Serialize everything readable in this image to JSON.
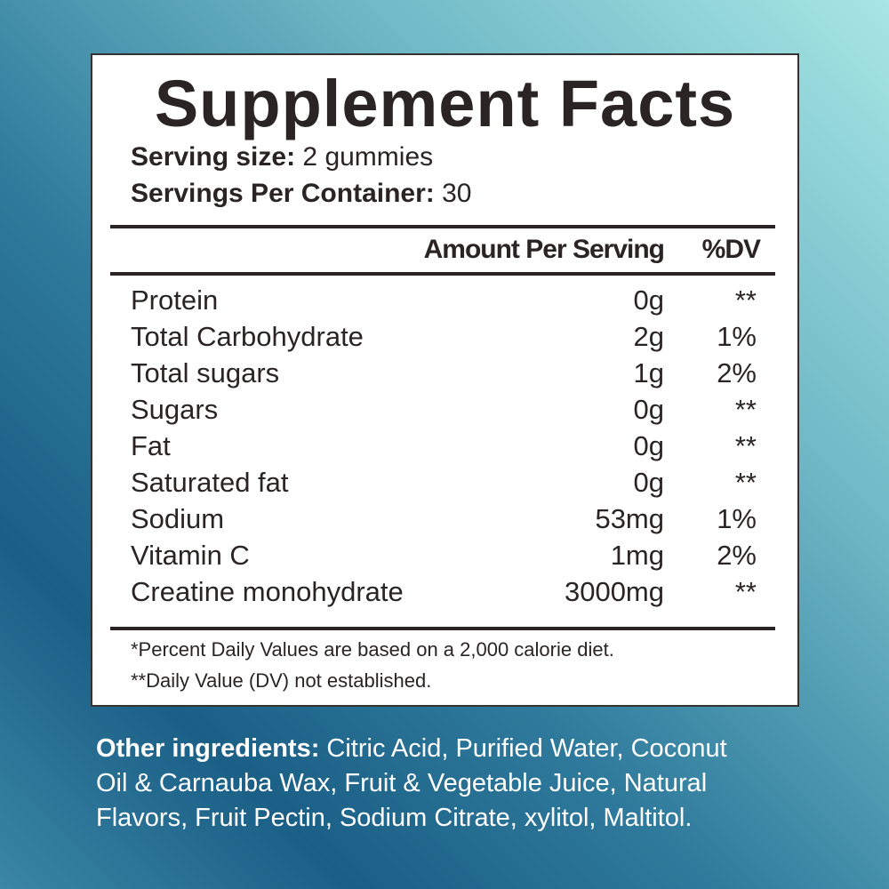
{
  "label": {
    "title": "Supplement Facts",
    "serving_size": {
      "label": "Serving size:",
      "value": "2 gummies"
    },
    "servings_per_container": {
      "label": "Servings Per Container:",
      "value": "30"
    },
    "header": {
      "amount": "Amount Per Serving",
      "dv": "%DV"
    },
    "rows": [
      [
        "Protein",
        "0g",
        "**"
      ],
      [
        "Total Carbohydrate",
        "2g",
        "1%"
      ],
      [
        "Total sugars",
        "1g",
        "2%"
      ],
      [
        "Sugars",
        "0g",
        "**"
      ],
      [
        "Fat",
        "0g",
        "**"
      ],
      [
        "Saturated fat",
        "0g",
        "**"
      ],
      [
        "Sodium",
        "53mg",
        "1%"
      ],
      [
        "Vitamin C",
        "1mg",
        "2%"
      ],
      [
        "Creatine monohydrate",
        "3000mg",
        "**"
      ]
    ],
    "footnotes": [
      "*Percent Daily Values are based on a 2,000 calorie diet.",
      "**Daily Value (DV) not established."
    ]
  },
  "other_ingredients": {
    "label": "Other ingredients:",
    "lines": [
      "Citric Acid, Purified Water, Coconut",
      "Oil & Carnauba Wax, Fruit & Vegetable Juice, Natural",
      "Flavors, Fruit Pectin, Sodium Citrate, xylitol, Maltitol."
    ]
  }
}
